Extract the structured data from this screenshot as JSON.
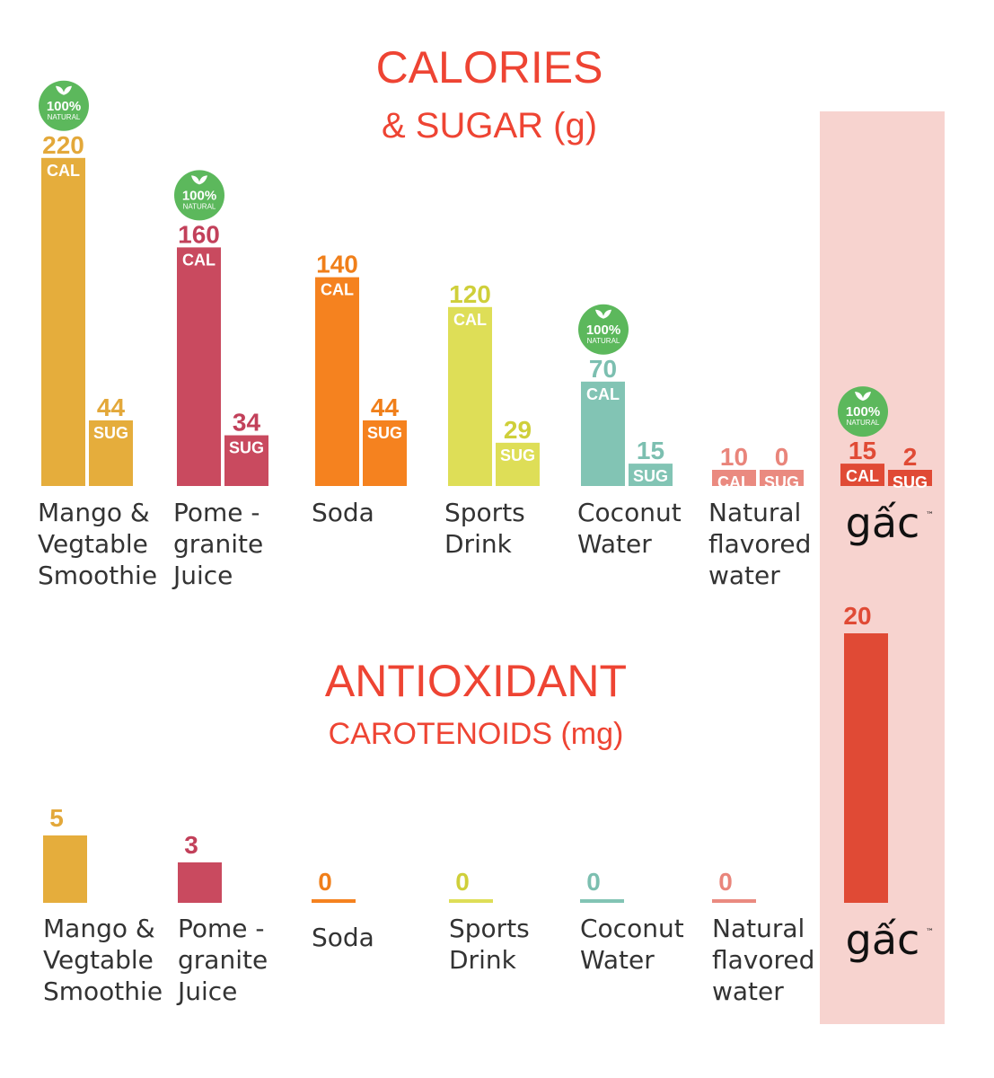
{
  "titles": {
    "calories_line1": "CALORIES",
    "calories_line2": "& SUGAR (g)",
    "antioxidant_line1": "ANTIOXIDANT",
    "antioxidant_line2": "CAROTENOIDS (mg)"
  },
  "units": {
    "cal": "CAL",
    "sug": "SUG"
  },
  "badge": {
    "line1": "100%",
    "line2": "NATURAL"
  },
  "logo": {
    "text": "gấc",
    "tm": "™"
  },
  "colors": {
    "accent": "#ee4433",
    "highlight_bg": "#f7d3cf",
    "badge_green": "#5cb85c",
    "category_text": "#333333"
  },
  "chart_data": [
    {
      "type": "bar",
      "title": "CALORIES & SUGAR (g)",
      "categories": [
        "Mango & Vegtable Smoothie",
        "Pome - granite Juice",
        "Soda",
        "Sports Drink",
        "Coconut Water",
        "Natural flavored water",
        "gấc"
      ],
      "category_lines": [
        [
          "Mango &",
          "Vegtable",
          "Smoothie"
        ],
        [
          "Pome -",
          "granite",
          "Juice"
        ],
        [
          "Soda"
        ],
        [
          "Sports",
          "Drink"
        ],
        [
          "Coconut",
          "Water"
        ],
        [
          "Natural",
          "flavored",
          "water"
        ],
        []
      ],
      "series": [
        {
          "name": "CAL",
          "values": [
            220,
            160,
            140,
            120,
            70,
            10,
            15
          ]
        },
        {
          "name": "SUG",
          "values": [
            44,
            34,
            44,
            29,
            15,
            0,
            2
          ]
        }
      ],
      "bar_colors": [
        "#e5ad3c",
        "#c94a5f",
        "#f5821f",
        "#dede57",
        "#82c4b4",
        "#ea8a80",
        "#e04a35"
      ],
      "text_colors": [
        "#e3a83a",
        "#c2405a",
        "#f07f1a",
        "#cfcf3a",
        "#7cbfb0",
        "#e9857b",
        "#e04a35"
      ],
      "natural_badge": [
        true,
        true,
        false,
        false,
        true,
        false,
        true
      ],
      "highlight": "gấc",
      "ylim": [
        0,
        230
      ]
    },
    {
      "type": "bar",
      "title": "ANTIOXIDANT CAROTENOIDS (mg)",
      "categories": [
        "Mango & Vegtable Smoothie",
        "Pome - granite Juice",
        "Soda",
        "Sports Drink",
        "Coconut Water",
        "Natural flavored water",
        "gấc"
      ],
      "values": [
        5,
        3,
        0,
        0,
        0,
        0,
        20
      ],
      "ylim": [
        0,
        20
      ]
    }
  ]
}
